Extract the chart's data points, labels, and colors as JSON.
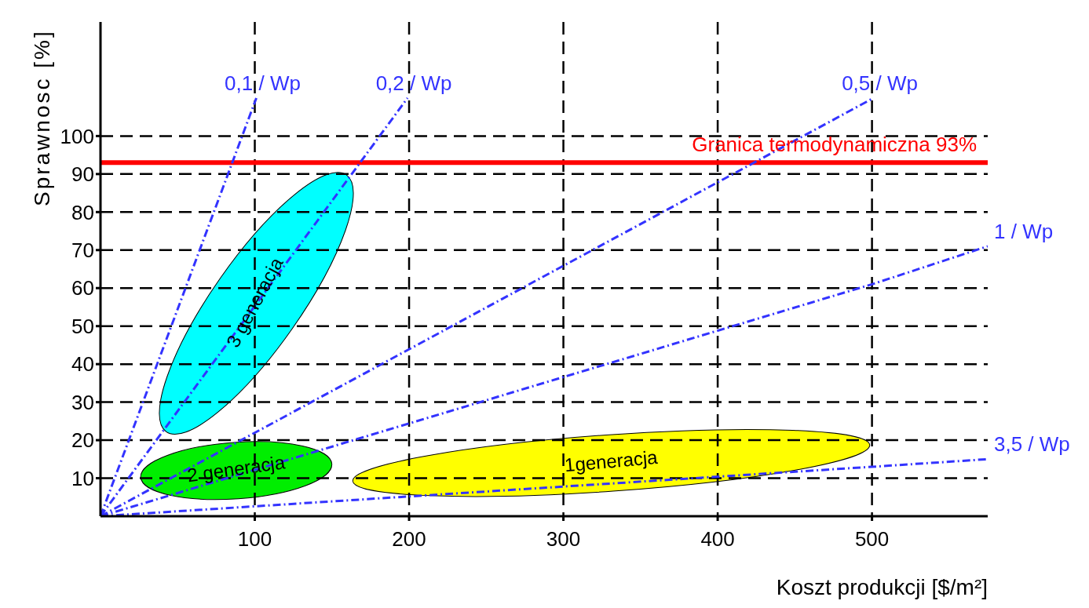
{
  "chart_data": {
    "type": "line",
    "xlabel": "Koszt produkcji [$/m²]",
    "ylabel": "Sprawnosc [%]",
    "xlim": [
      0,
      575
    ],
    "ylim": [
      0,
      130
    ],
    "xticks": [
      100,
      200,
      300,
      400,
      500
    ],
    "yticks": [
      10,
      20,
      30,
      40,
      50,
      60,
      70,
      80,
      90,
      100
    ],
    "grid": true,
    "line_style": "dashed",
    "marker": "none",
    "series": [
      {
        "name": "0,1 / Wp",
        "color": "#3333ff",
        "x": [
          0,
          101
        ],
        "values": [
          0,
          110
        ]
      },
      {
        "name": "0,2 / Wp",
        "color": "#3333ff",
        "x": [
          0,
          199
        ],
        "values": [
          0,
          110
        ]
      },
      {
        "name": "0,5 / Wp",
        "color": "#3333ff",
        "x": [
          0,
          501
        ],
        "values": [
          0,
          110
        ]
      },
      {
        "name": "1 / Wp",
        "color": "#3333ff",
        "x": [
          0,
          500,
          575
        ],
        "values": [
          0,
          61,
          71
        ]
      },
      {
        "name": "3,5 / Wp",
        "color": "#3333ff",
        "x": [
          0,
          500,
          575
        ],
        "values": [
          0,
          13,
          15
        ]
      }
    ],
    "ref_lines": [
      {
        "axis": "y",
        "value": 93,
        "label": "Granica termodynamiczna 93%",
        "color": "#ff0000",
        "line_style": "solid"
      }
    ],
    "annotations": [
      "3 generacja",
      "2 generacja",
      "1generacja"
    ]
  }
}
